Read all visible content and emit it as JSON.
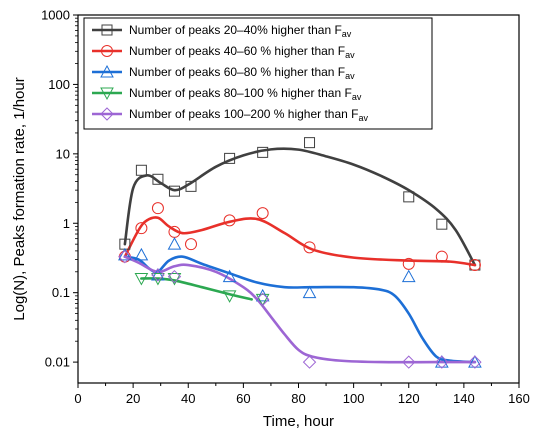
{
  "chart_data": {
    "type": "scatter",
    "title": "",
    "xlabel": "Time, hour",
    "ylabel": "Log(N), Peaks formation rate, 1/hour",
    "xlim": [
      0,
      160
    ],
    "ylim": [
      0.005,
      1000
    ],
    "yscale": "log",
    "x_ticks": [
      0,
      20,
      40,
      60,
      80,
      100,
      120,
      140,
      160
    ],
    "x_tick_labels": [
      "0",
      "20",
      "40",
      "60",
      "80",
      "100",
      "120",
      "140",
      "160"
    ],
    "y_ticks": [
      0.01,
      0.1,
      1,
      10,
      100,
      1000
    ],
    "y_tick_labels": [
      "0.01",
      "0.1",
      "1",
      "10",
      "100",
      "1000"
    ],
    "grid": false,
    "legend_position": "top-left",
    "series": [
      {
        "label_main": "Number of peaks 20–40% higher than F",
        "label_sub": "av",
        "color": "#404040",
        "marker": "square",
        "x": [
          17,
          23,
          29,
          35,
          41,
          55,
          67,
          84,
          120,
          132,
          144
        ],
        "y": [
          0.5,
          5.8,
          4.3,
          2.9,
          3.4,
          8.6,
          10.5,
          14.5,
          2.4,
          0.97,
          0.25
        ],
        "fit_x": [
          17,
          20,
          25,
          30,
          35,
          40,
          50,
          60,
          70,
          80,
          90,
          100,
          110,
          120,
          130,
          137,
          144
        ],
        "fit_y": [
          0.5,
          3.2,
          4.9,
          3.8,
          3.0,
          3.6,
          6.5,
          9.5,
          11.6,
          11.5,
          9.2,
          7.0,
          4.8,
          3.0,
          1.6,
          0.8,
          0.25
        ]
      },
      {
        "label_main": "Number of peaks 40–60 % higher than F",
        "label_sub": "av",
        "color": "#e8302a",
        "marker": "circle",
        "x": [
          17,
          23,
          29,
          35,
          41,
          55,
          67,
          84,
          120,
          132,
          144
        ],
        "y": [
          0.33,
          0.85,
          1.65,
          0.75,
          0.5,
          1.1,
          1.4,
          0.45,
          0.26,
          0.33,
          0.25
        ],
        "fit_x": [
          17,
          22,
          25,
          29,
          33,
          38,
          45,
          55,
          65,
          75,
          85,
          100,
          120,
          135,
          144
        ],
        "fit_y": [
          0.33,
          0.8,
          1.1,
          1.2,
          0.9,
          0.72,
          0.8,
          1.05,
          1.15,
          0.72,
          0.42,
          0.32,
          0.29,
          0.28,
          0.25
        ]
      },
      {
        "label_main": "Number of peaks 60–80 % higher than F",
        "label_sub": "av",
        "color": "#1d6fd6",
        "marker": "triangle-up",
        "x": [
          17,
          23,
          29,
          35,
          55,
          67,
          84,
          120,
          132,
          144
        ],
        "y": [
          0.35,
          0.35,
          0.18,
          0.5,
          0.17,
          0.09,
          0.1,
          0.17,
          0.01,
          0.01
        ],
        "fit_x": [
          17,
          22,
          26,
          29,
          33,
          38,
          45,
          55,
          65,
          75,
          85,
          100,
          110,
          115,
          120,
          125,
          130,
          135,
          144
        ],
        "fit_y": [
          0.33,
          0.3,
          0.22,
          0.2,
          0.29,
          0.33,
          0.26,
          0.19,
          0.14,
          0.12,
          0.12,
          0.12,
          0.11,
          0.09,
          0.05,
          0.022,
          0.012,
          0.0105,
          0.01
        ]
      },
      {
        "label_main": "Number of peaks 80–100 % higher than F",
        "label_sub": "av",
        "color": "#2ca851",
        "marker": "triangle-down",
        "x": [
          23,
          29,
          35,
          55,
          67
        ],
        "y": [
          0.16,
          0.16,
          0.16,
          0.09,
          0.08
        ],
        "fit_x": [
          23,
          29,
          35,
          45,
          55,
          63
        ],
        "fit_y": [
          0.16,
          0.16,
          0.15,
          0.12,
          0.095,
          0.08
        ]
      },
      {
        "label_main": "Number of peaks 100–200 % higher than F",
        "label_sub": "av",
        "color": "#9d66d4",
        "marker": "diamond",
        "x": [
          17,
          29,
          35,
          67,
          84,
          120,
          132,
          144
        ],
        "y": [
          0.33,
          0.18,
          0.17,
          0.08,
          0.01,
          0.01,
          0.01,
          0.01
        ],
        "fit_x": [
          17,
          22,
          27,
          30,
          35,
          40,
          50,
          60,
          65,
          70,
          75,
          80,
          85,
          95,
          110,
          130,
          144
        ],
        "fit_y": [
          0.33,
          0.27,
          0.21,
          0.2,
          0.24,
          0.25,
          0.2,
          0.12,
          0.08,
          0.045,
          0.025,
          0.015,
          0.012,
          0.0105,
          0.01,
          0.01,
          0.01
        ]
      }
    ]
  }
}
